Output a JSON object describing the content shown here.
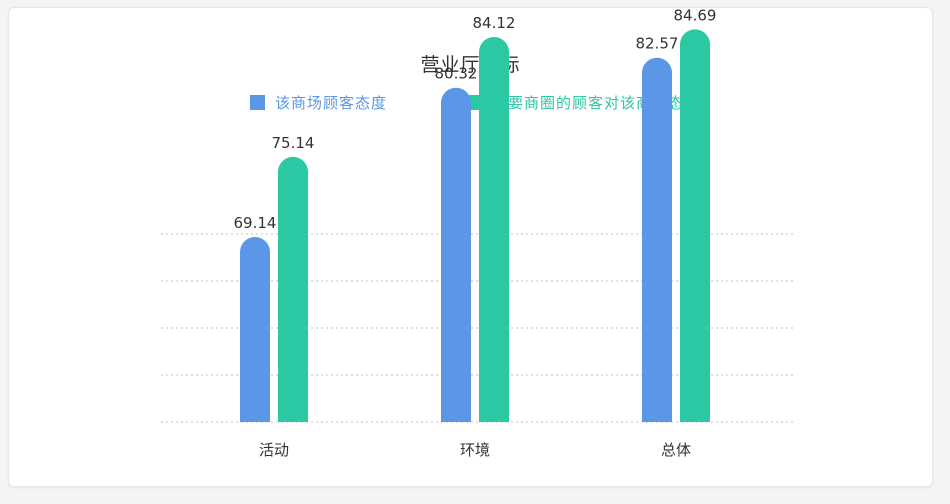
{
  "chart_data": {
    "type": "bar",
    "title": "营业厅指标",
    "categories": [
      "活动",
      "环境",
      "总体"
    ],
    "series": [
      {
        "name": "该商场顾客态度",
        "values": [
          69.14,
          80.32,
          82.57
        ],
        "color": "#5b97e6"
      },
      {
        "name": "主要商圈的顾客对该商场态度",
        "values": [
          75.14,
          84.12,
          84.69
        ],
        "color": "#2ac9a4"
      }
    ],
    "xlabel": "",
    "ylabel": "",
    "grid": true,
    "legend_position": "top"
  }
}
